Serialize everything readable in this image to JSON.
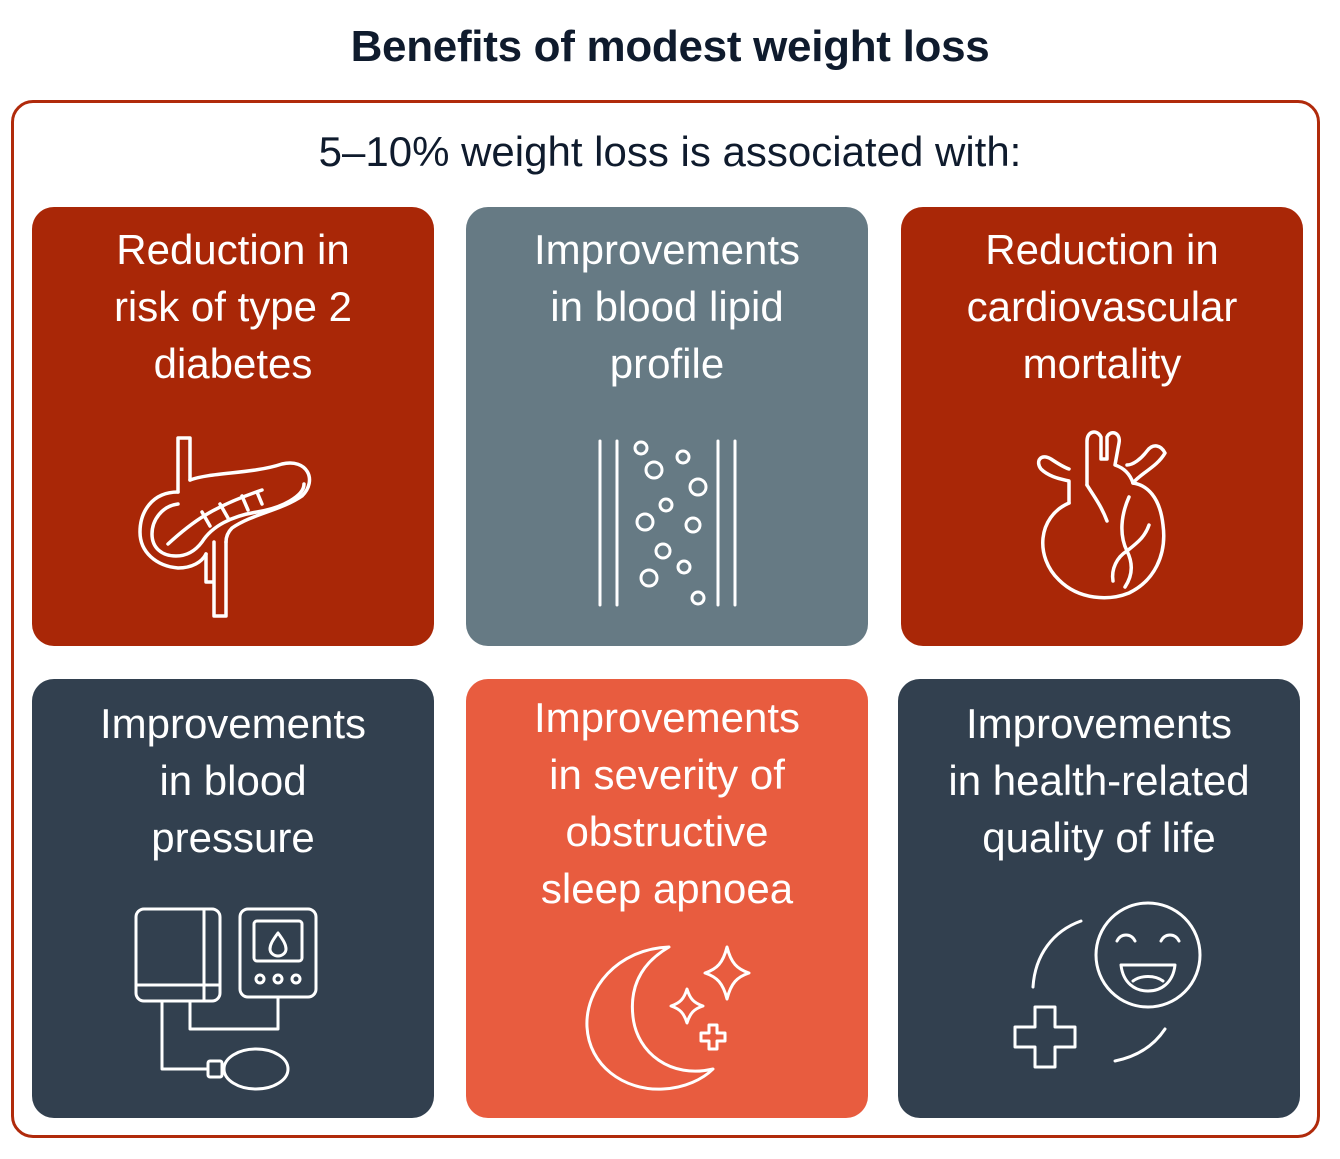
{
  "title": "Benefits of modest weight loss",
  "subtitle": "5–10% weight loss is associated with:",
  "colors": {
    "frame": "#b02a0b",
    "dark_red": "#a92707",
    "slate_grey": "#667a84",
    "navy": "#32404f",
    "orange": "#e85c3f",
    "title_text": "#0f1b2d"
  },
  "cards": [
    {
      "lines": [
        "Reduction in",
        "risk of type 2",
        "diabetes"
      ],
      "icon": "pancreas-icon"
    },
    {
      "lines": [
        "Improvements",
        "in blood lipid",
        "profile"
      ],
      "icon": "blood-vessel-lipid-icon"
    },
    {
      "lines": [
        "Reduction in",
        "cardiovascular",
        "mortality"
      ],
      "icon": "heart-icon"
    },
    {
      "lines": [
        "Improvements",
        "in blood",
        "pressure"
      ],
      "icon": "blood-pressure-monitor-icon"
    },
    {
      "lines": [
        "Improvements",
        "in severity of",
        "obstructive",
        "sleep apnoea"
      ],
      "icon": "moon-stars-icon"
    },
    {
      "lines": [
        "Improvements",
        "in health-related",
        "quality of life"
      ],
      "icon": "smiley-health-icon"
    }
  ]
}
